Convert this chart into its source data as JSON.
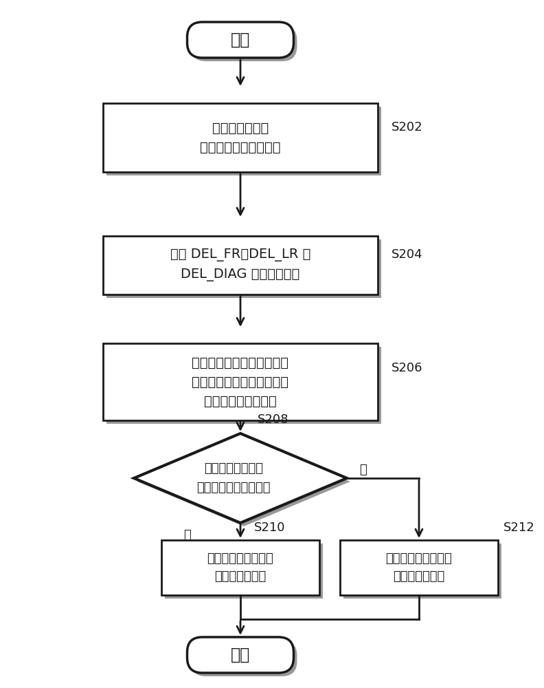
{
  "bg_color": "#ffffff",
  "line_color": "#1a1a1a",
  "box_fill": "#ffffff",
  "shadow_color": "#999999",
  "text_color": "#1a1a1a",
  "start_text": "开始",
  "end_text": "结束",
  "s202_text": "根据轮速来计算\n相对速度差及平均速度",
  "s202_label": "S202",
  "s204_text": "计算 DEL_FR、DEL_LR 及\nDEL_DIAG 的半径分析值",
  "s204_label": "S204",
  "s206_text": "计算三个半径分析值中除去\n绝对值最大的值的其余两个\n半径分析值的分析和",
  "s206_label": "S206",
  "s208_text": "计算出的分析和＜\n已设定的决定基准值？",
  "s208_label": "S208",
  "yes_text": "是",
  "no_text": "否",
  "s210_text": "将第一临界值设定为\n已设定的临界值",
  "s210_label": "S210",
  "s212_text": "将第二临界值设定为\n已设定的临界值",
  "s212_label": "S212"
}
